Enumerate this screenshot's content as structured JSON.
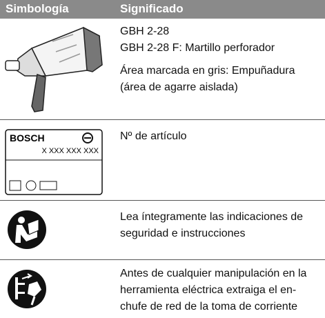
{
  "header": {
    "columns": [
      "Simbología",
      "Significado"
    ]
  },
  "rows": [
    {
      "paragraphs": [
        [
          "GBH 2-28",
          "GBH 2-28 F: Martillo perforador"
        ],
        [
          "Área marcada en gris: Empuñadura",
          "(área de agarre aislada)"
        ]
      ]
    },
    {
      "plate_brand": "BOSCH",
      "plate_number": "X XXX XXX XXX",
      "paragraphs": [
        [
          "Nº de artículo"
        ]
      ]
    },
    {
      "paragraphs": [
        [
          "Lea íntegramente las indicaciones de",
          "seguridad e instrucciones"
        ]
      ]
    },
    {
      "paragraphs": [
        [
          "Antes de cualquier manipulación en la",
          "herramienta eléctrica extraiga el en-",
          "chufe de red de la toma de corriente"
        ]
      ]
    }
  ]
}
